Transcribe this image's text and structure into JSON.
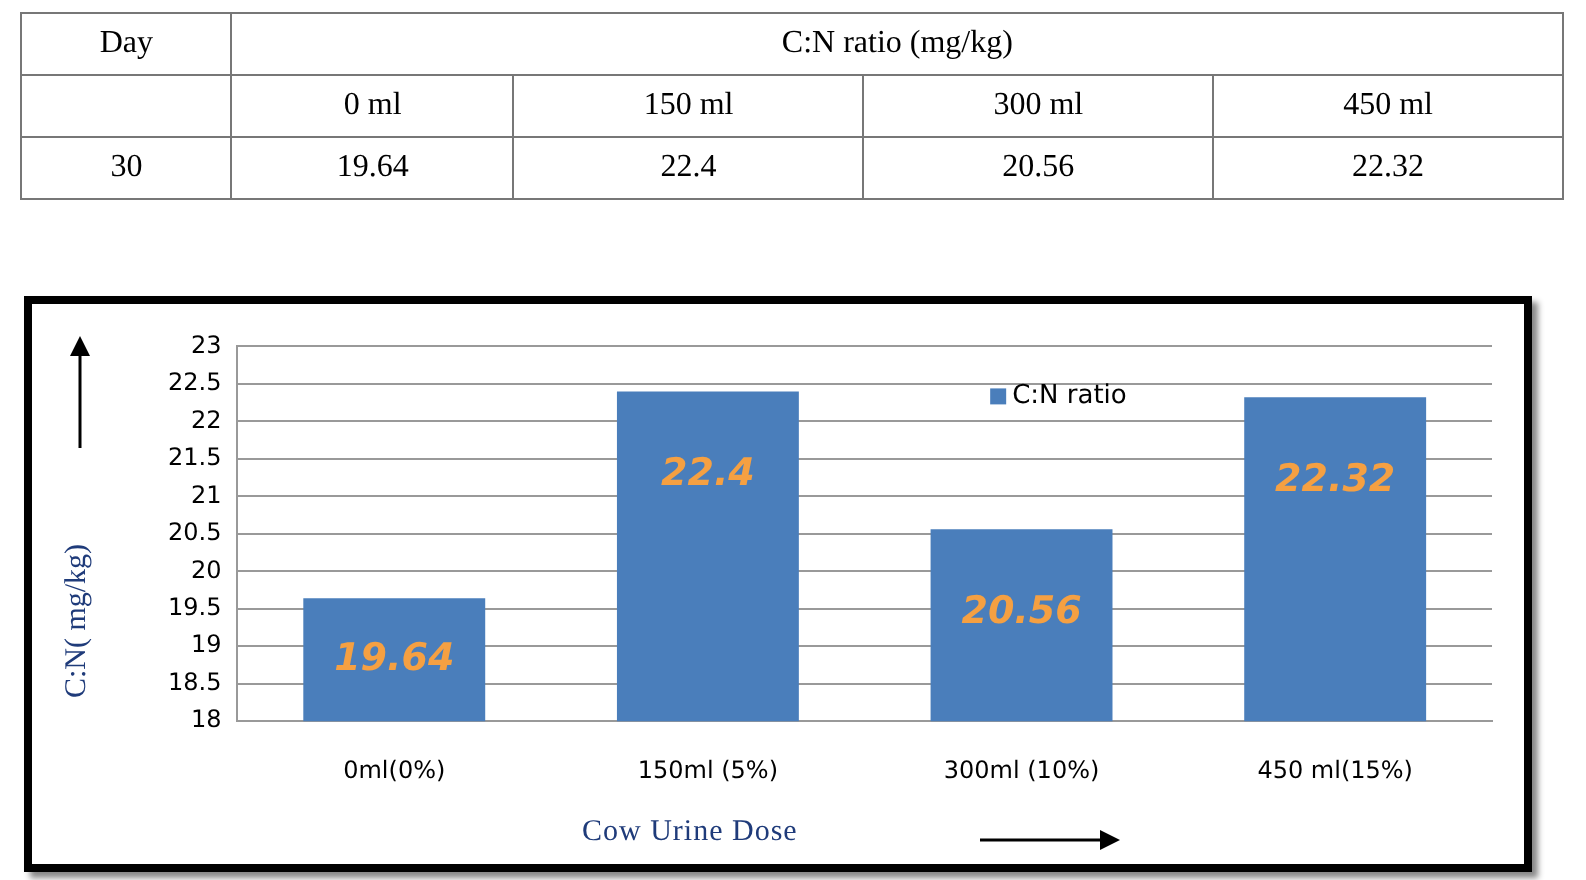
{
  "chart_data": {
    "type": "bar",
    "xlabel": "Cow Urine Dose",
    "ylabel": "C:N( mg/kg)",
    "categories": [
      "0ml(0%)",
      "150ml (5%)",
      "300ml (10%)",
      "450 ml(15%)"
    ],
    "series": [
      {
        "name": "C:N ratio",
        "color": "#4a7ebb",
        "values": [
          19.64,
          22.4,
          20.56,
          22.32
        ],
        "value_labels": [
          "19.64",
          "22.4",
          "20.56",
          "22.32"
        ]
      }
    ],
    "ylim": [
      18,
      23
    ],
    "yticks": [
      18,
      18.5,
      19,
      19.5,
      20,
      20.5,
      21,
      21.5,
      22,
      22.5,
      23
    ],
    "grid": "y",
    "legend": "top right",
    "annotations": [
      "Day",
      "C:N ratio  (mg/kg)",
      "0 ml",
      "150 ml",
      "300 ml",
      "450 ml",
      "30",
      "19.64",
      "22.4",
      "20.56",
      "22.32"
    ]
  }
}
